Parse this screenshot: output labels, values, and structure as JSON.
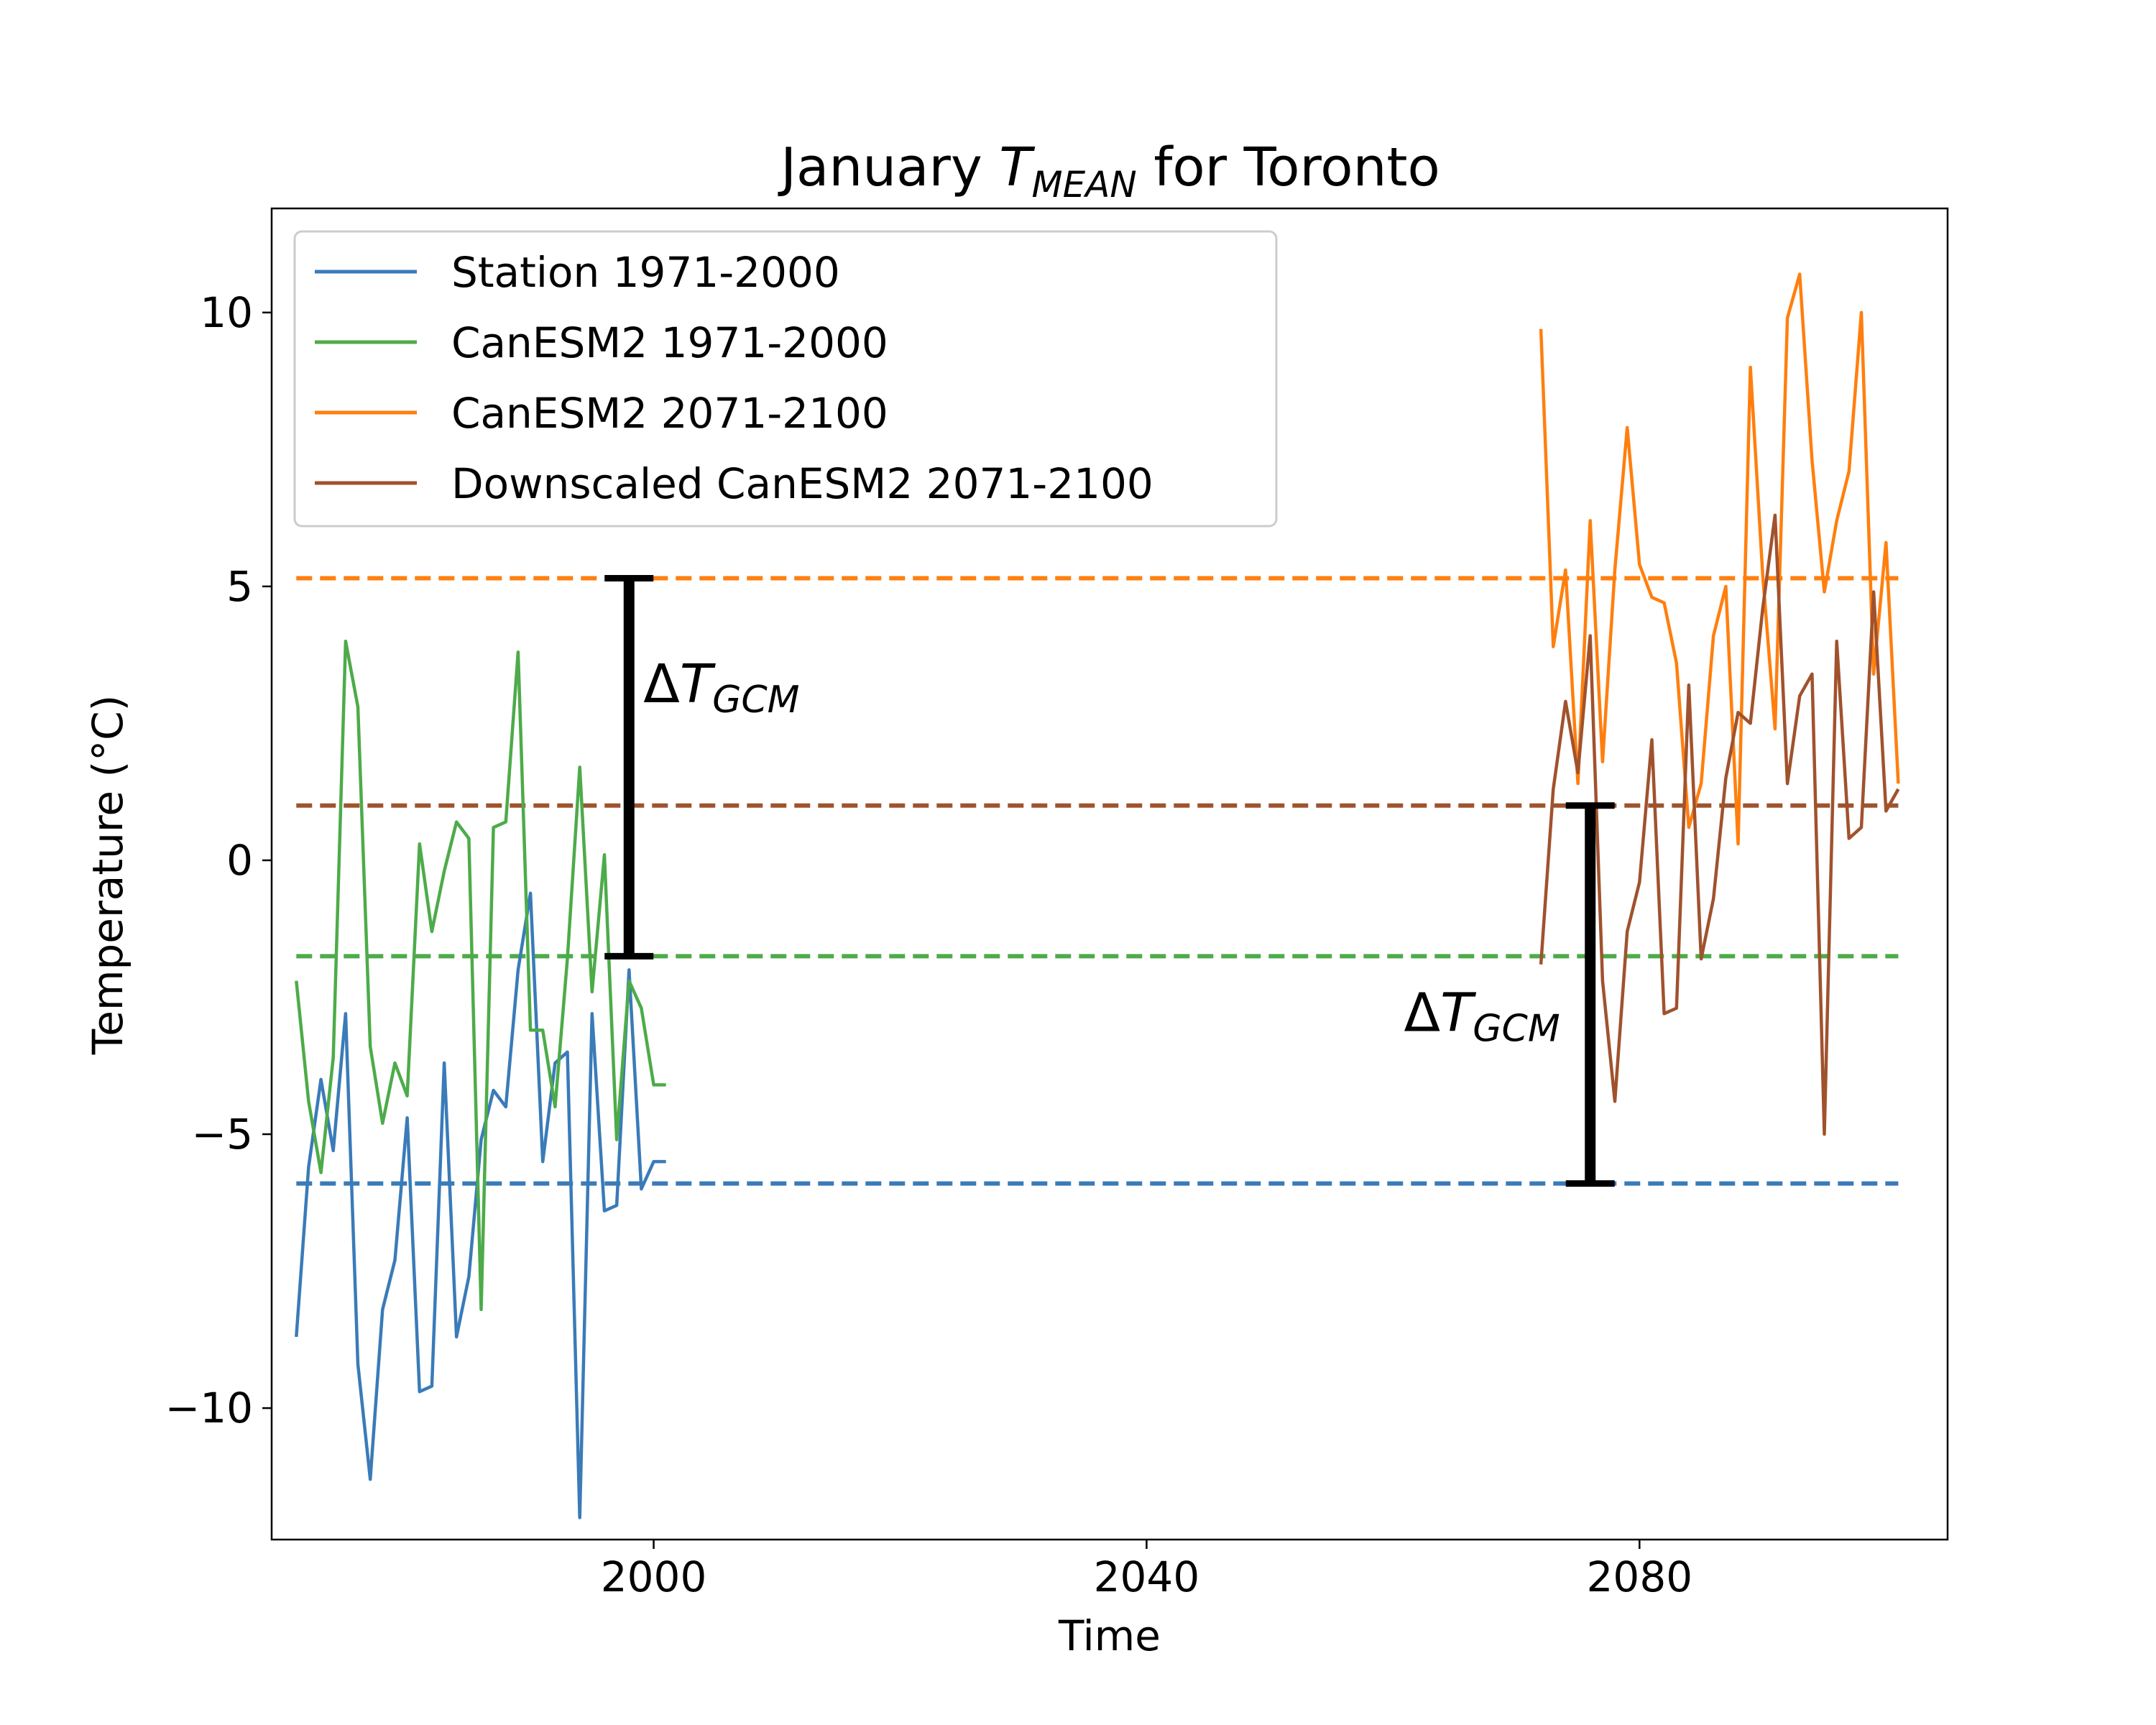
{
  "chart_data": {
    "type": "line",
    "title_prefix": "January ",
    "title_symbol": "T",
    "title_subscript": "MEAN",
    "title_suffix": " for Toronto",
    "xlabel": "Time",
    "ylabel": "Temperature (°C)",
    "xlim": [
      1969,
      2105
    ],
    "ylim": [
      -12.4,
      11.9
    ],
    "xticks": [
      {
        "value": 2000,
        "label": "2000"
      },
      {
        "value": 2040,
        "label": "2040"
      },
      {
        "value": 2080,
        "label": "2080"
      }
    ],
    "yticks": [
      {
        "value": -10,
        "label": "−10"
      },
      {
        "value": -5,
        "label": "−5"
      },
      {
        "value": 0,
        "label": "0"
      },
      {
        "value": 5,
        "label": "5"
      },
      {
        "value": 10,
        "label": "10"
      }
    ],
    "grid": false,
    "legend_position": "upper-left",
    "series": [
      {
        "name": "Station 1971-2000",
        "color": "#3a7bb8",
        "x": [
          1971,
          1972,
          1973,
          1974,
          1975,
          1976,
          1977,
          1978,
          1979,
          1980,
          1981,
          1982,
          1983,
          1984,
          1985,
          1986,
          1987,
          1988,
          1989,
          1990,
          1991,
          1992,
          1993,
          1994,
          1995,
          1996,
          1997,
          1998,
          1999,
          2000,
          2001
        ],
        "y": [
          -8.7,
          -5.6,
          -4.0,
          -5.3,
          -2.8,
          -9.2,
          -11.3,
          -8.2,
          -7.3,
          -4.7,
          -9.7,
          -9.6,
          -3.7,
          -8.7,
          -7.6,
          -5.1,
          -4.2,
          -4.5,
          -2.0,
          -0.6,
          -5.5,
          -3.7,
          -3.5,
          -12.0,
          -2.8,
          -6.4,
          -6.3,
          -2.0,
          -6.0,
          -5.5,
          -5.5
        ]
      },
      {
        "name": "CanESM2 1971-2000",
        "color": "#4dab4a",
        "x": [
          1971,
          1972,
          1973,
          1974,
          1975,
          1976,
          1977,
          1978,
          1979,
          1980,
          1981,
          1982,
          1983,
          1984,
          1985,
          1986,
          1987,
          1988,
          1989,
          1990,
          1991,
          1992,
          1993,
          1994,
          1995,
          1996,
          1997,
          1998,
          1999,
          2000,
          2001
        ],
        "y": [
          -2.2,
          -4.4,
          -5.7,
          -3.6,
          4.0,
          2.8,
          -3.4,
          -4.8,
          -3.7,
          -4.3,
          0.3,
          -1.3,
          -0.2,
          0.7,
          0.4,
          -8.2,
          0.6,
          0.7,
          3.8,
          -3.1,
          -3.1,
          -4.5,
          -1.8,
          1.7,
          -2.4,
          0.1,
          -5.1,
          -2.2,
          -2.7,
          -4.1,
          -4.1
        ]
      },
      {
        "name": "CanESM2 2071-2100",
        "color": "#ff7f0e",
        "x": [
          2072,
          2073,
          2074,
          2075,
          2076,
          2077,
          2078,
          2079,
          2080,
          2081,
          2082,
          2083,
          2084,
          2085,
          2086,
          2087,
          2088,
          2089,
          2090,
          2091,
          2092,
          2093,
          2094,
          2095,
          2096,
          2097,
          2098,
          2099,
          2100,
          2101
        ],
        "y": [
          9.7,
          3.9,
          5.3,
          1.4,
          6.2,
          1.8,
          5.3,
          7.9,
          5.4,
          4.8,
          4.7,
          3.6,
          0.6,
          1.4,
          4.1,
          5.0,
          0.3,
          9.0,
          5.2,
          2.4,
          9.9,
          10.7,
          7.3,
          4.9,
          6.2,
          7.1,
          10.0,
          3.4,
          5.8,
          1.4
        ]
      },
      {
        "name": "Downscaled CanESM2 2071-2100",
        "color": "#a0522d",
        "x": [
          2072,
          2073,
          2074,
          2075,
          2076,
          2077,
          2078,
          2079,
          2080,
          2081,
          2082,
          2083,
          2084,
          2085,
          2086,
          2087,
          2088,
          2089,
          2090,
          2091,
          2092,
          2093,
          2094,
          2095,
          2096,
          2097,
          2098,
          2099,
          2100,
          2101
        ],
        "y": [
          -1.9,
          1.3,
          2.9,
          1.6,
          4.1,
          -2.2,
          -4.4,
          -1.3,
          -0.4,
          2.2,
          -2.8,
          -2.7,
          3.2,
          -1.8,
          -0.7,
          1.5,
          2.7,
          2.5,
          4.6,
          6.3,
          1.4,
          3.0,
          3.4,
          -5.0,
          4.0,
          0.4,
          0.6,
          4.9,
          0.9,
          1.3
        ]
      }
    ],
    "reference_lines": [
      {
        "series": "CanESM2 2071-2100",
        "value": 5.15,
        "color": "#ff7f0e",
        "style": "dashed"
      },
      {
        "series": "Downscaled CanESM2 2071-2100",
        "value": 1.0,
        "color": "#a0522d",
        "style": "dashed"
      },
      {
        "series": "CanESM2 1971-2000",
        "value": -1.75,
        "color": "#4dab4a",
        "style": "dashed"
      },
      {
        "series": "Station 1971-2000",
        "value": -5.9,
        "color": "#3a7bb8",
        "style": "dashed"
      }
    ],
    "ref_line_xrange": [
      1971,
      2101
    ],
    "annotations": [
      {
        "type": "delta-bar",
        "x": 1998,
        "y_from": -1.75,
        "y_to": 5.15,
        "label_symbol": "T",
        "label_subscript": "GCM",
        "label_side": "right",
        "label_y": 3.2
      },
      {
        "type": "delta-bar",
        "x": 2076,
        "y_from": -5.9,
        "y_to": 1.0,
        "label_symbol": "T",
        "label_subscript": "GCM",
        "label_side": "left",
        "label_y": -2.8
      }
    ]
  }
}
